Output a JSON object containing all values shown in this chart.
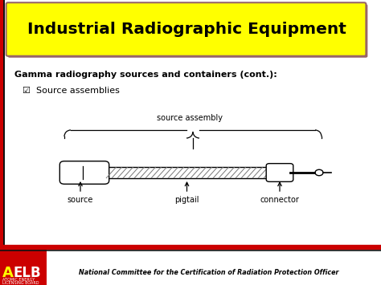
{
  "title": "Industrial Radiographic Equipment",
  "title_bg": "#FFFF00",
  "title_color": "#000000",
  "title_border": "#996666",
  "subtitle": "Gamma radiography sources and containers (cont.):",
  "bullet": "☑  Source assemblies",
  "diagram_label_top": "source assembly",
  "label_source": "source",
  "label_pigtail": "pigtail",
  "label_connector": "connector",
  "slide_bg": "#FFFFFF",
  "left_bar_red": "#CC0000",
  "left_bar_black": "#111111",
  "footer_text": "National Committee for the Certification of Radiation Protection Officer",
  "footer_line_red": "#CC0000",
  "footer_line_black": "#111111",
  "aelb_bg": "#CC0000",
  "aelb_text": "AELB",
  "atomic_text1": "ATOMIC ENERGY",
  "atomic_text2": "LICENSING BOARD"
}
